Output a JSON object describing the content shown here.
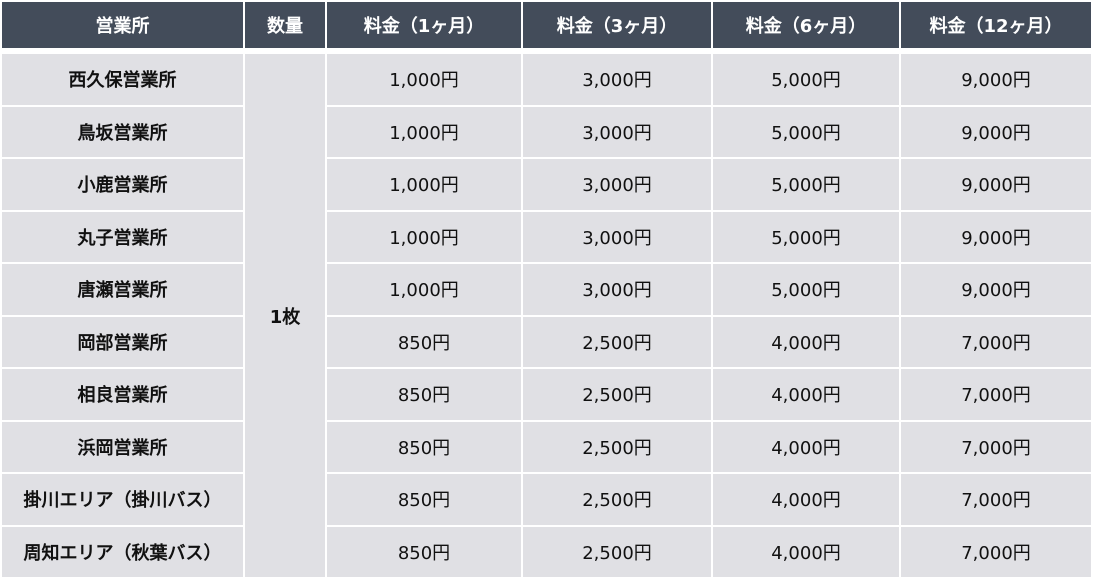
{
  "headers": [
    "営業所",
    "数量",
    "料金（1ヶ月）",
    "料金（3ヶ月）",
    "料金（6ヶ月）",
    "料金（12ヶ月）"
  ],
  "quantity": "1枚",
  "rows": [
    {
      "office": "西久保営業所",
      "p1": "1,000円",
      "p3": "3,000円",
      "p6": "5,000円",
      "p12": "9,000円"
    },
    {
      "office": "鳥坂営業所",
      "p1": "1,000円",
      "p3": "3,000円",
      "p6": "5,000円",
      "p12": "9,000円"
    },
    {
      "office": "小鹿営業所",
      "p1": "1,000円",
      "p3": "3,000円",
      "p6": "5,000円",
      "p12": "9,000円"
    },
    {
      "office": "丸子営業所",
      "p1": "1,000円",
      "p3": "3,000円",
      "p6": "5,000円",
      "p12": "9,000円"
    },
    {
      "office": "唐瀬営業所",
      "p1": "1,000円",
      "p3": "3,000円",
      "p6": "5,000円",
      "p12": "9,000円"
    },
    {
      "office": "岡部営業所",
      "p1": "850円",
      "p3": "2,500円",
      "p6": "4,000円",
      "p12": "7,000円"
    },
    {
      "office": "相良営業所",
      "p1": "850円",
      "p3": "2,500円",
      "p6": "4,000円",
      "p12": "7,000円"
    },
    {
      "office": "浜岡営業所",
      "p1": "850円",
      "p3": "2,500円",
      "p6": "4,000円",
      "p12": "7,000円"
    },
    {
      "office": "掛川エリア（掛川バス）",
      "p1": "850円",
      "p3": "2,500円",
      "p6": "4,000円",
      "p12": "7,000円"
    },
    {
      "office": "周知エリア（秋葉バス）",
      "p1": "850円",
      "p3": "2,500円",
      "p6": "4,000円",
      "p12": "7,000円"
    }
  ],
  "colors": {
    "header_bg": "#434c5a",
    "cell_bg": "#e0e0e4"
  }
}
